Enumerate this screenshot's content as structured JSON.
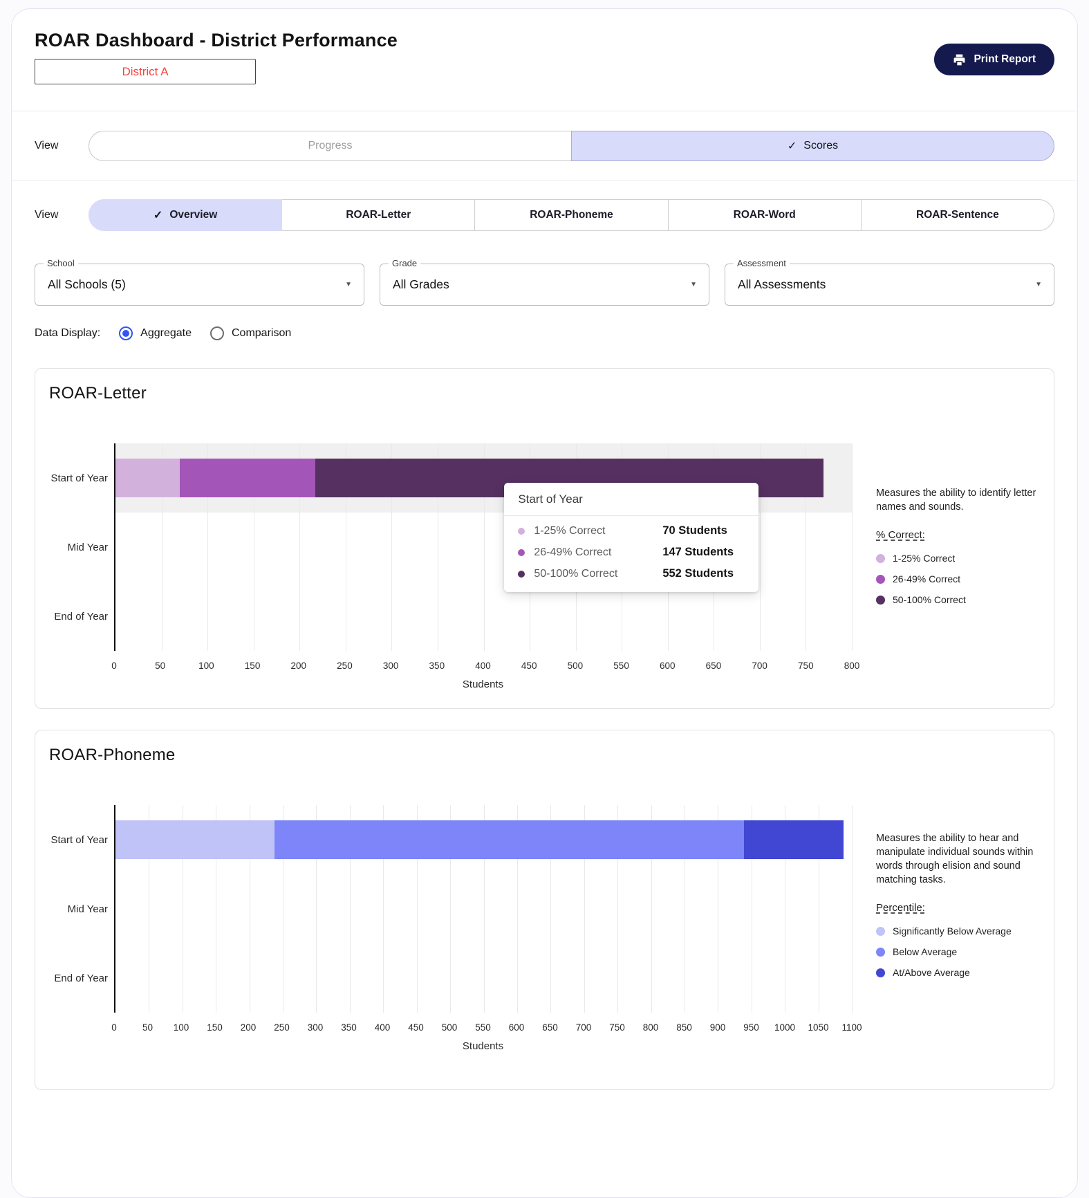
{
  "glyphs": {
    "check": "✓",
    "dropdown_arrow": "▼"
  },
  "colors": {
    "accent_selected_bg": "#d8dbfa",
    "print_button_bg": "#141a4e",
    "district_text": "#f64340",
    "radio_selected": "#2f55f2",
    "row_highlight": "#f0f0f0"
  },
  "header": {
    "title": "ROAR Dashboard - District Performance",
    "district_value": "District A",
    "print_button": "Print Report",
    "print_icon": "printer-icon"
  },
  "view_mode": {
    "label": "View",
    "options": [
      {
        "label": "Progress",
        "selected": false
      },
      {
        "label": "Scores",
        "selected": true
      }
    ]
  },
  "view_tabs": {
    "label": "View",
    "tabs": [
      {
        "label": "Overview",
        "selected": true
      },
      {
        "label": "ROAR-Letter",
        "selected": false
      },
      {
        "label": "ROAR-Phoneme",
        "selected": false
      },
      {
        "label": "ROAR-Word",
        "selected": false
      },
      {
        "label": "ROAR-Sentence",
        "selected": false
      }
    ]
  },
  "filters": [
    {
      "label": "School",
      "value": "All Schools (5)"
    },
    {
      "label": "Grade",
      "value": "All Grades"
    },
    {
      "label": "Assessment",
      "value": "All Assessments"
    }
  ],
  "data_display": {
    "label": "Data Display:",
    "options": [
      {
        "label": "Aggregate",
        "selected": true
      },
      {
        "label": "Comparison",
        "selected": false
      }
    ]
  },
  "chart_data": [
    {
      "type": "bar",
      "orientation": "horizontal",
      "stacked": true,
      "title": "ROAR-Letter",
      "categories": [
        "Start of Year",
        "Mid Year",
        "End of Year"
      ],
      "series": [
        {
          "name": "1-25% Correct",
          "color": "#d3b1dd",
          "values": [
            70,
            0,
            0
          ]
        },
        {
          "name": "26-49% Correct",
          "color": "#a456b8",
          "values": [
            147,
            0,
            0
          ]
        },
        {
          "name": "50-100% Correct",
          "color": "#553061",
          "values": [
            552,
            0,
            0
          ]
        }
      ],
      "xlabel": "Students",
      "xlim": [
        0,
        800
      ],
      "tick_step": 50,
      "grid": true,
      "highlighted_category_index": 0,
      "description": "Measures the ability to identify letter names and sounds.",
      "legend_title": "% Correct:",
      "legend_position": "right",
      "tooltip": {
        "title": "Start of Year",
        "rows": [
          {
            "label": "1-25% Correct",
            "value": "70 Students"
          },
          {
            "label": "26-49% Correct",
            "value": "147 Students"
          },
          {
            "label": "50-100% Correct",
            "value": "552 Students"
          }
        ]
      }
    },
    {
      "type": "bar",
      "orientation": "horizontal",
      "stacked": true,
      "title": "ROAR-Phoneme",
      "categories": [
        "Start of Year",
        "Mid Year",
        "End of Year"
      ],
      "series": [
        {
          "name": "Significantly Below Average",
          "color": "#c0c3f8",
          "values": [
            238,
            0,
            0
          ]
        },
        {
          "name": "Below Average",
          "color": "#7d85f8",
          "values": [
            701,
            0,
            0
          ]
        },
        {
          "name": "At/Above Average",
          "color": "#4146d3",
          "values": [
            149,
            0,
            0
          ]
        }
      ],
      "xlabel": "Students",
      "xlim": [
        0,
        1100
      ],
      "tick_step": 50,
      "grid": true,
      "highlighted_category_index": -1,
      "description": "Measures the ability to hear and manipulate individual sounds within words through elision and sound matching tasks.",
      "legend_title": "Percentile:",
      "legend_position": "right"
    }
  ]
}
